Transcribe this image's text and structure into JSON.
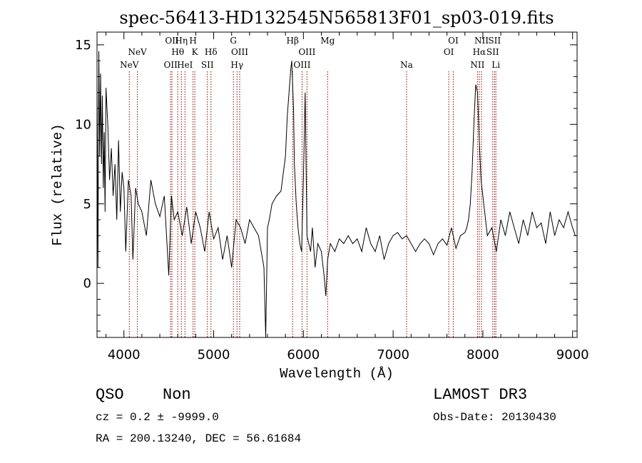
{
  "chart_data": {
    "type": "line",
    "title": "spec-56413-HD132545N565813F01_sp03-019.fits",
    "xlabel": "Wavelength (Å)",
    "ylabel": "Flux (relative)",
    "xlim": [
      3700,
      9050
    ],
    "ylim": [
      -3.4,
      15.8
    ],
    "xticks": [
      4000,
      5000,
      6000,
      7000,
      8000,
      9000
    ],
    "yticks": [
      0,
      5,
      10,
      15
    ],
    "grid": false,
    "line_color": "#000000",
    "marker_color": "#8b0000",
    "series": [
      {
        "x": [
          3700,
          3710,
          3720,
          3730,
          3740,
          3750,
          3760,
          3770,
          3780,
          3790,
          3800,
          3820,
          3840,
          3860,
          3880,
          3900,
          3920,
          3940,
          3960,
          3980,
          4000,
          4020,
          4050,
          4080,
          4100,
          4130,
          4160,
          4200,
          4250,
          4300,
          4350,
          4400,
          4450,
          4500,
          4530,
          4560,
          4600,
          4650,
          4700,
          4750,
          4800,
          4850,
          4900,
          4950,
          5000,
          5050,
          5100,
          5150,
          5200,
          5250,
          5300,
          5350,
          5400,
          5450,
          5500,
          5530,
          5560,
          5580,
          5600,
          5620,
          5650,
          5700,
          5750,
          5800,
          5820,
          5840,
          5860,
          5870,
          5880,
          5890,
          5900,
          5920,
          5940,
          5960,
          5980,
          6000,
          6020,
          6040,
          6060,
          6080,
          6100,
          6130,
          6160,
          6200,
          6230,
          6250,
          6270,
          6300,
          6350,
          6400,
          6450,
          6500,
          6550,
          6600,
          6650,
          6700,
          6750,
          6800,
          6850,
          6900,
          6950,
          7000,
          7050,
          7100,
          7150,
          7200,
          7250,
          7300,
          7350,
          7400,
          7450,
          7500,
          7550,
          7600,
          7650,
          7700,
          7750,
          7800,
          7820,
          7840,
          7860,
          7880,
          7900,
          7920,
          7940,
          7960,
          7980,
          8000,
          8020,
          8050,
          8100,
          8150,
          8200,
          8250,
          8300,
          8350,
          8400,
          8450,
          8500,
          8550,
          8600,
          8650,
          8700,
          8750,
          8800,
          8850,
          8900,
          8950,
          9000,
          9030
        ],
        "y": [
          12.5,
          1.0,
          14.6,
          8.0,
          13.2,
          7.5,
          11.8,
          6.0,
          9.5,
          4.5,
          12.3,
          10.0,
          6.5,
          8.5,
          5.5,
          7.5,
          4.0,
          9.0,
          4.5,
          7.0,
          6.0,
          2.0,
          6.5,
          5.5,
          1.5,
          6.0,
          5.0,
          4.5,
          3.0,
          6.5,
          5.0,
          4.2,
          5.5,
          0.5,
          5.5,
          4.0,
          4.5,
          3.0,
          4.8,
          2.5,
          4.5,
          3.5,
          2.0,
          4.5,
          2.8,
          3.5,
          1.5,
          3.0,
          1.0,
          4.0,
          3.5,
          2.5,
          4.0,
          3.5,
          3.0,
          2.0,
          1.0,
          -3.5,
          3.5,
          4.0,
          5.0,
          5.5,
          5.8,
          8.0,
          10.5,
          12.0,
          13.5,
          14.0,
          12.5,
          11.0,
          7.5,
          5.0,
          3.5,
          2.5,
          2.0,
          6.5,
          12.0,
          3.0,
          2.5,
          2.0,
          3.5,
          1.0,
          2.5,
          2.0,
          0.5,
          -0.8,
          1.5,
          2.5,
          2.0,
          2.8,
          2.5,
          3.0,
          2.5,
          2.8,
          2.0,
          3.5,
          2.5,
          2.0,
          3.0,
          1.5,
          2.5,
          3.0,
          3.2,
          2.8,
          3.0,
          2.5,
          2.0,
          2.5,
          2.8,
          2.5,
          1.8,
          2.5,
          2.8,
          2.4,
          3.5,
          2.2,
          3.0,
          3.2,
          3.5,
          4.0,
          5.0,
          7.0,
          10.0,
          12.5,
          12.0,
          9.0,
          6.5,
          5.5,
          4.5,
          3.0,
          3.5,
          2.0,
          4.0,
          3.0,
          4.5,
          3.5,
          2.5,
          4.0,
          3.0,
          4.5,
          3.5,
          3.8,
          2.5,
          4.5,
          3.0,
          4.0,
          3.5,
          4.5,
          3.5,
          3.0
        ]
      }
    ],
    "lines": [
      {
        "x": 4060,
        "labels": [
          {
            "text": "NeV",
            "row": 3
          }
        ]
      },
      {
        "x": 4150,
        "labels": [
          {
            "text": "NeV",
            "row": 2
          }
        ]
      },
      {
        "x": 4520,
        "labels": [
          {
            "text": "OII",
            "row": 3
          }
        ]
      },
      {
        "x": 4535,
        "labels": [
          {
            "text": "OII",
            "row": 1
          }
        ]
      },
      {
        "x": 4600,
        "labels": [
          {
            "text": "Hθ",
            "row": 2
          }
        ]
      },
      {
        "x": 4640,
        "labels": [
          {
            "text": "Hη",
            "row": 1
          }
        ]
      },
      {
        "x": 4680,
        "labels": [
          {
            "text": "HeI",
            "row": 3
          }
        ]
      },
      {
        "x": 4770,
        "labels": [
          {
            "text": "H",
            "row": 1
          }
        ]
      },
      {
        "x": 4790,
        "labels": [
          {
            "text": "K",
            "row": 2
          }
        ]
      },
      {
        "x": 4930,
        "labels": [
          {
            "text": "SII",
            "row": 3
          }
        ]
      },
      {
        "x": 4970,
        "labels": [
          {
            "text": "Hδ",
            "row": 2
          }
        ]
      },
      {
        "x": 5220,
        "labels": [
          {
            "text": "G",
            "row": 1
          }
        ]
      },
      {
        "x": 5260,
        "labels": [
          {
            "text": "Hγ",
            "row": 3
          }
        ]
      },
      {
        "x": 5290,
        "labels": [
          {
            "text": "OIII",
            "row": 2
          }
        ]
      },
      {
        "x": 5880,
        "labels": [
          {
            "text": "Hβ",
            "row": 1
          }
        ]
      },
      {
        "x": 5985,
        "labels": [
          {
            "text": "OIII",
            "row": 3
          }
        ]
      },
      {
        "x": 6040,
        "labels": [
          {
            "text": "OIII",
            "row": 2
          }
        ]
      },
      {
        "x": 6270,
        "labels": [
          {
            "text": "Mg",
            "row": 1
          }
        ]
      },
      {
        "x": 7150,
        "labels": [
          {
            "text": "Na",
            "row": 3
          }
        ]
      },
      {
        "x": 7620,
        "labels": [
          {
            "text": "OI",
            "row": 2
          }
        ]
      },
      {
        "x": 7670,
        "labels": [
          {
            "text": "OI",
            "row": 1
          }
        ]
      },
      {
        "x": 7940,
        "labels": [
          {
            "text": "NII",
            "row": 3
          }
        ]
      },
      {
        "x": 7960,
        "labels": [
          {
            "text": "Hα",
            "row": 2
          }
        ]
      },
      {
        "x": 7985,
        "labels": [
          {
            "text": "NII",
            "row": 1
          }
        ]
      },
      {
        "x": 8110,
        "labels": [
          {
            "text": "SII",
            "row": 2
          }
        ]
      },
      {
        "x": 8130,
        "labels": [
          {
            "text": "SII",
            "row": 1
          }
        ]
      },
      {
        "x": 8145,
        "labels": [
          {
            "text": "Li",
            "row": 3
          }
        ]
      }
    ]
  },
  "info": {
    "class": "QSO",
    "subclass": "Non",
    "survey": "LAMOST DR3",
    "cz": "cz = 0.2 ± -9999.0",
    "obs_date": "Obs-Date: 20130430",
    "coords": "RA = 200.13240, DEC =  56.61684"
  }
}
